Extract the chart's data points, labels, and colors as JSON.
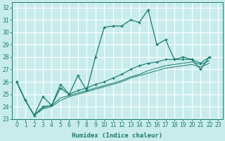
{
  "xlabel": "Humidex (Indice chaleur)",
  "xlim": [
    -0.5,
    23.5
  ],
  "ylim": [
    23,
    32.4
  ],
  "yticks": [
    23,
    24,
    25,
    26,
    27,
    28,
    29,
    30,
    31,
    32
  ],
  "xticks": [
    0,
    1,
    2,
    3,
    4,
    5,
    6,
    7,
    8,
    9,
    10,
    11,
    12,
    13,
    14,
    15,
    16,
    17,
    18,
    19,
    20,
    21,
    22,
    23
  ],
  "bg_color": "#c8ecec",
  "grid_color": "#ffffff",
  "line_color": "#1a7a6e",
  "series1_x": [
    0,
    1,
    2,
    3,
    4,
    5,
    6,
    7,
    8,
    9,
    10,
    11,
    12,
    13,
    14,
    15,
    16,
    17,
    18,
    19,
    20,
    21,
    22
  ],
  "series1_y": [
    26.0,
    24.5,
    23.3,
    24.8,
    24.1,
    25.5,
    25.0,
    26.5,
    25.3,
    28.0,
    30.4,
    30.5,
    30.5,
    31.0,
    30.8,
    31.8,
    29.0,
    29.4,
    27.8,
    28.0,
    27.8,
    27.0,
    28.0
  ],
  "series2_x": [
    0,
    1,
    2,
    3,
    4,
    5,
    6,
    7,
    8,
    9,
    10,
    11,
    12,
    13,
    14,
    15,
    16,
    17,
    18,
    19,
    20,
    21,
    22
  ],
  "series2_y": [
    26.0,
    24.5,
    23.3,
    24.0,
    24.1,
    25.8,
    25.0,
    25.3,
    25.5,
    25.8,
    26.0,
    26.3,
    26.6,
    27.0,
    27.3,
    27.5,
    27.6,
    27.8,
    27.8,
    27.8,
    27.8,
    27.5,
    28.0
  ],
  "series3_x": [
    0,
    1,
    2,
    3,
    4,
    5,
    6,
    7,
    8,
    9,
    10,
    11,
    12,
    13,
    14,
    15,
    16,
    17,
    18,
    19,
    20,
    21,
    22
  ],
  "series3_y": [
    26.0,
    24.5,
    23.3,
    23.9,
    24.1,
    24.7,
    24.9,
    25.1,
    25.3,
    25.5,
    25.7,
    25.9,
    26.1,
    26.4,
    26.6,
    26.9,
    27.1,
    27.3,
    27.4,
    27.5,
    27.6,
    27.4,
    27.7
  ],
  "series4_x": [
    0,
    1,
    2,
    3,
    4,
    5,
    6,
    7,
    8,
    9,
    10,
    11,
    12,
    13,
    14,
    15,
    16,
    17,
    18,
    19,
    20,
    21,
    22
  ],
  "series4_y": [
    26.0,
    24.5,
    23.3,
    23.8,
    24.0,
    24.5,
    24.8,
    25.0,
    25.2,
    25.4,
    25.6,
    25.8,
    26.0,
    26.3,
    26.5,
    26.7,
    26.9,
    27.1,
    27.2,
    27.3,
    27.4,
    27.2,
    27.5
  ]
}
